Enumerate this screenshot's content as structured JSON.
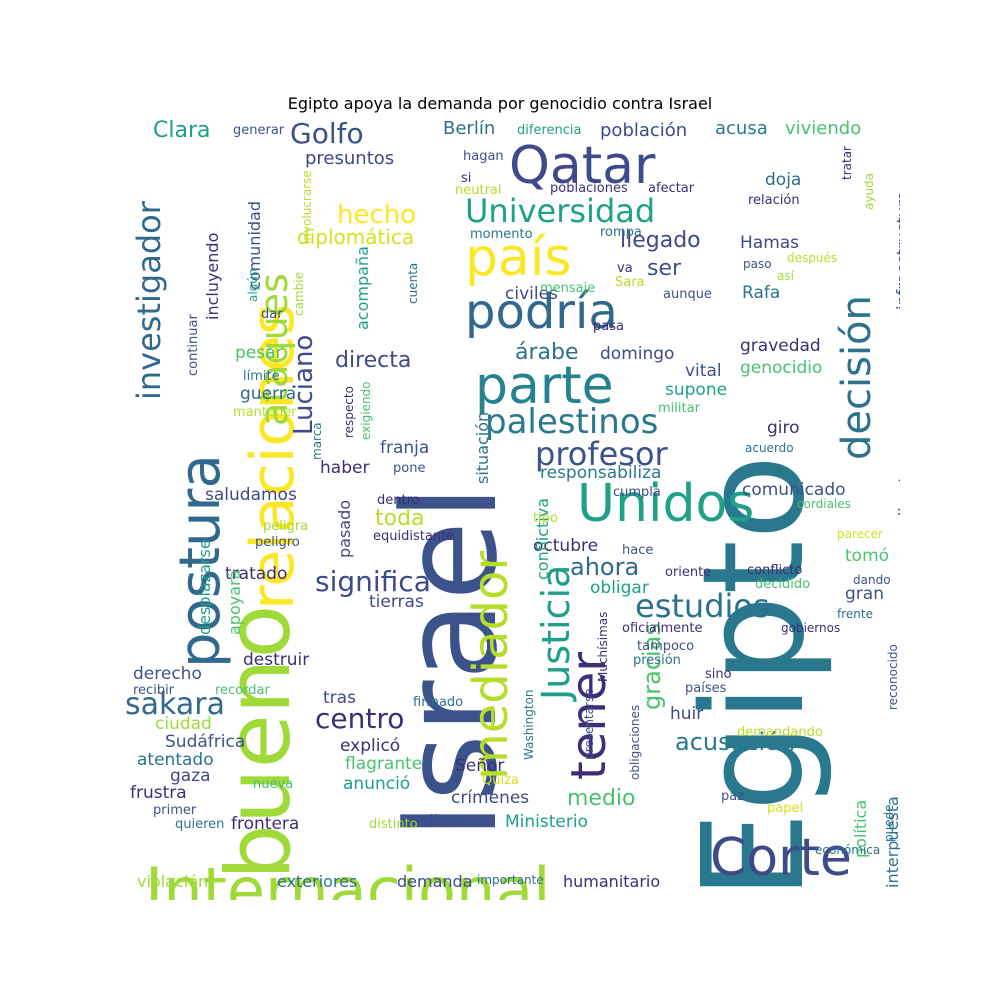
{
  "title": "Egipto apoya la demanda por genocidio contra Israel",
  "palette": {
    "dark_purple": "#3f2d77",
    "indigo": "#3e4a89",
    "blue": "#31678e",
    "teal": "#26828e",
    "green_teal": "#1fa187",
    "green": "#4ac16d",
    "lime": "#a0da39",
    "yellow": "#fde725"
  },
  "words": [
    {
      "text": "Egipto",
      "color": "#2a788e"
    },
    {
      "text": "Israel",
      "color": "#3b528b"
    },
    {
      "text": "bueno",
      "color": "#a0da39"
    },
    {
      "text": "Internacional",
      "color": "#a0da39"
    },
    {
      "text": "relaciones",
      "color": "#fde725"
    },
    {
      "text": "postura",
      "color": "#31688e"
    },
    {
      "text": "mediador",
      "color": "#b5de2b"
    },
    {
      "text": "Qatar",
      "color": "#3e4a89"
    },
    {
      "text": "podría",
      "color": "#31688e"
    },
    {
      "text": "parte",
      "color": "#26828e"
    },
    {
      "text": "país",
      "color": "#fde725"
    },
    {
      "text": "Unidos",
      "color": "#1fa187"
    },
    {
      "text": "tener",
      "color": "#3f2d77"
    },
    {
      "text": "Corte",
      "color": "#3e4a89"
    },
    {
      "text": "Justicia",
      "color": "#1f9e89"
    },
    {
      "text": "decisión",
      "color": "#2c728e"
    },
    {
      "text": "ataques",
      "color": "#a0da39"
    },
    {
      "text": "investigador",
      "color": "#31688e"
    },
    {
      "text": "Universidad",
      "color": "#1fa187"
    },
    {
      "text": "palestinos",
      "color": "#2a788e"
    },
    {
      "text": "profesor",
      "color": "#3b528b"
    },
    {
      "text": "estudios",
      "color": "#2c728e"
    },
    {
      "text": "Luciano",
      "color": "#3e4a89"
    },
    {
      "text": "sakara",
      "color": "#31688e"
    },
    {
      "text": "significa",
      "color": "#3e4a89"
    },
    {
      "text": "centro",
      "color": "#3f2d77"
    },
    {
      "text": "Golfo",
      "color": "#3b528b"
    },
    {
      "text": "hecho",
      "color": "#fde725"
    },
    {
      "text": "acusación",
      "color": "#2a788e"
    },
    {
      "text": "gracias",
      "color": "#4ac16d"
    },
    {
      "text": "ahora",
      "color": "#31688e"
    },
    {
      "text": "directa",
      "color": "#3e4a89"
    },
    {
      "text": "árabe",
      "color": "#2c728e"
    },
    {
      "text": "llegado",
      "color": "#3e4a89"
    },
    {
      "text": "ser",
      "color": "#3b528b"
    },
    {
      "text": "toda",
      "color": "#b5de2b"
    },
    {
      "text": "medio",
      "color": "#4ac16d"
    },
    {
      "text": "diplomática",
      "color": "#d2e21b"
    },
    {
      "text": "Clara",
      "color": "#1f9e89"
    },
    {
      "text": "Berlín",
      "color": "#2c728e"
    },
    {
      "text": "población",
      "color": "#3e4a89"
    },
    {
      "text": "acusa",
      "color": "#2a788e"
    },
    {
      "text": "viviendo",
      "color": "#4ac16d"
    },
    {
      "text": "presuntos",
      "color": "#3e4a89"
    },
    {
      "text": "Hamas",
      "color": "#3e4a89"
    },
    {
      "text": "doja",
      "color": "#31688e"
    },
    {
      "text": "Rafa",
      "color": "#2c728e"
    },
    {
      "text": "civiles",
      "color": "#3e4a89"
    },
    {
      "text": "domingo",
      "color": "#3e4a89"
    },
    {
      "text": "vital",
      "color": "#3b528b"
    },
    {
      "text": "gravedad",
      "color": "#3f2d77"
    },
    {
      "text": "genocidio",
      "color": "#4ac16d"
    },
    {
      "text": "supone",
      "color": "#1fa187"
    },
    {
      "text": "guerra",
      "color": "#31688e"
    },
    {
      "text": "pesar",
      "color": "#4ac16d"
    },
    {
      "text": "haber",
      "color": "#3f2d77"
    },
    {
      "text": "franja",
      "color": "#3b528b"
    },
    {
      "text": "saludamos",
      "color": "#3e4a89"
    },
    {
      "text": "responsabiliza",
      "color": "#2a788e"
    },
    {
      "text": "comunicado",
      "color": "#3b528b"
    },
    {
      "text": "giro",
      "color": "#3f2d77"
    },
    {
      "text": "tomó",
      "color": "#4ac16d"
    },
    {
      "text": "octubre",
      "color": "#3f2d77"
    },
    {
      "text": "tratado",
      "color": "#3f2d77"
    },
    {
      "text": "tierras",
      "color": "#3e4a89"
    },
    {
      "text": "obligar",
      "color": "#1fa187"
    },
    {
      "text": "gran",
      "color": "#3b528b"
    },
    {
      "text": "destruir",
      "color": "#3f2d77"
    },
    {
      "text": "derecho",
      "color": "#3b528b"
    },
    {
      "text": "ciudad",
      "color": "#a0da39"
    },
    {
      "text": "tras",
      "color": "#3e4a89"
    },
    {
      "text": "explicó",
      "color": "#3f2d77"
    },
    {
      "text": "huir",
      "color": "#3e4a89"
    },
    {
      "text": "Sudáfrica",
      "color": "#3b528b"
    },
    {
      "text": "atentado",
      "color": "#2c728e"
    },
    {
      "text": "gaza",
      "color": "#3e4a89"
    },
    {
      "text": "frustra",
      "color": "#3f2d77"
    },
    {
      "text": "flagrante",
      "color": "#4ac16d"
    },
    {
      "text": "anunció",
      "color": "#1fa187"
    },
    {
      "text": "crímenes",
      "color": "#3e4a89"
    },
    {
      "text": "Señor",
      "color": "#3f2d77"
    },
    {
      "text": "frontera",
      "color": "#3f2d77"
    },
    {
      "text": "dice",
      "color": "#3e4a89"
    },
    {
      "text": "Ministerio",
      "color": "#1f9e89"
    },
    {
      "text": "violación",
      "color": "#a0da39"
    },
    {
      "text": "exteriores",
      "color": "#2c728e"
    },
    {
      "text": "demanda",
      "color": "#3e4a89"
    },
    {
      "text": "humanitario",
      "color": "#3f2d77"
    },
    {
      "text": "importante",
      "color": "#2c728e"
    },
    {
      "text": "política",
      "color": "#4ac16d"
    },
    {
      "text": "interpuesta",
      "color": "#2c728e"
    },
    {
      "text": "directos",
      "color": "#3b528b"
    },
    {
      "text": "infraestructura",
      "color": "#3b528b"
    },
    {
      "text": "desaparezca",
      "color": "#3e4a89"
    },
    {
      "text": "pasado",
      "color": "#3e4a89"
    },
    {
      "text": "conflictiva",
      "color": "#1fa187"
    },
    {
      "text": "situación",
      "color": "#2c728e"
    },
    {
      "text": "desplazarse",
      "color": "#1fa187"
    },
    {
      "text": "apoyará",
      "color": "#4ac16d"
    },
    {
      "text": "comunidad",
      "color": "#3b528b"
    },
    {
      "text": "incluyendo",
      "color": "#3f2d77"
    },
    {
      "text": "acompaña",
      "color": "#1fa187"
    },
    {
      "text": "continuar",
      "color": "#3b528b"
    },
    {
      "text": "exigiendo",
      "color": "#4ac16d"
    },
    {
      "text": "Washington",
      "color": "#2a788e"
    },
    {
      "text": "presentarse",
      "color": "#3b528b"
    },
    {
      "text": "Muchísimas",
      "color": "#3f2d77"
    },
    {
      "text": "obligaciones",
      "color": "#3b528b"
    },
    {
      "text": "reconocido",
      "color": "#3b528b"
    },
    {
      "text": "segundo",
      "color": "#2c728e"
    },
    {
      "text": "involucrarse",
      "color": "#b5de2b"
    },
    {
      "text": "algún",
      "color": "#1fa187"
    },
    {
      "text": "cambie",
      "color": "#a0da39"
    },
    {
      "text": "cuenta",
      "color": "#2c728e"
    },
    {
      "text": "marca",
      "color": "#2c728e"
    },
    {
      "text": "generar",
      "color": "#3b528b"
    },
    {
      "text": "diferencia",
      "color": "#1fa187"
    },
    {
      "text": "hagan",
      "color": "#3b528b"
    },
    {
      "text": "si",
      "color": "#3f2d77"
    },
    {
      "text": "neutral",
      "color": "#b5de2b"
    },
    {
      "text": "poblaciones",
      "color": "#3f2d77"
    },
    {
      "text": "afectar",
      "color": "#3f2d77"
    },
    {
      "text": "momento",
      "color": "#2c728e"
    },
    {
      "text": "rompa",
      "color": "#2c728e"
    },
    {
      "text": "va",
      "color": "#3f2d77"
    },
    {
      "text": "Sara",
      "color": "#b5de2b"
    },
    {
      "text": "mensaje",
      "color": "#4ac16d"
    },
    {
      "text": "aunque",
      "color": "#3b528b"
    },
    {
      "text": "pasa",
      "color": "#3f2d77"
    },
    {
      "text": "militar",
      "color": "#4ac16d"
    },
    {
      "text": "pone",
      "color": "#3b528b"
    },
    {
      "text": "dentro",
      "color": "#3f2d77"
    },
    {
      "text": "cumpla",
      "color": "#3e4a89"
    },
    {
      "text": "tipo",
      "color": "#b5de2b"
    },
    {
      "text": "equidistante",
      "color": "#3f2d77"
    },
    {
      "text": "hace",
      "color": "#3b528b"
    },
    {
      "text": "oriente",
      "color": "#3f2d77"
    },
    {
      "text": "conflicto",
      "color": "#3f2d77"
    },
    {
      "text": "decidido",
      "color": "#4ac16d"
    },
    {
      "text": "oficialmente",
      "color": "#3f2d77"
    },
    {
      "text": "tampoco",
      "color": "#3b528b"
    },
    {
      "text": "presión",
      "color": "#2c728e"
    },
    {
      "text": "sino",
      "color": "#3f2d77"
    },
    {
      "text": "países",
      "color": "#3b528b"
    },
    {
      "text": "firmado",
      "color": "#2c728e"
    },
    {
      "text": "demandando",
      "color": "#b5de2b"
    },
    {
      "text": "paz",
      "color": "#3b528b"
    },
    {
      "text": "papel",
      "color": "#d2e21b"
    },
    {
      "text": "Quiza",
      "color": "#d2e21b"
    },
    {
      "text": "distinto",
      "color": "#a0da39"
    },
    {
      "text": "nueva",
      "color": "#4ac16d"
    },
    {
      "text": "primer",
      "color": "#3b528b"
    },
    {
      "text": "quieren",
      "color": "#2c728e"
    },
    {
      "text": "recibir",
      "color": "#3b528b"
    },
    {
      "text": "recordar",
      "color": "#4ac16d"
    },
    {
      "text": "peligra",
      "color": "#a0da39"
    },
    {
      "text": "peligro",
      "color": "#3b528b"
    },
    {
      "text": "límite",
      "color": "#2c728e"
    },
    {
      "text": "mantener",
      "color": "#b5de2b"
    },
    {
      "text": "dar",
      "color": "#3b528b"
    },
    {
      "text": "respecto",
      "color": "#3f2d77"
    },
    {
      "text": "relación",
      "color": "#3f2d77"
    },
    {
      "text": "ayuda",
      "color": "#a0da39"
    },
    {
      "text": "tratar",
      "color": "#3f2d77"
    },
    {
      "text": "paso",
      "color": "#3b528b"
    },
    {
      "text": "después",
      "color": "#b5de2b"
    },
    {
      "text": "así",
      "color": "#a0da39"
    },
    {
      "text": "acuerdo",
      "color": "#2c728e"
    },
    {
      "text": "cordiales",
      "color": "#4ac16d"
    },
    {
      "text": "parecer",
      "color": "#d2e21b"
    },
    {
      "text": "dando",
      "color": "#3b528b"
    },
    {
      "text": "frente",
      "color": "#2c728e"
    },
    {
      "text": "gobiernos",
      "color": "#3f2d77"
    },
    {
      "text": "económica",
      "color": "#2c728e"
    },
    {
      "text": "puede",
      "color": "#2c728e"
    }
  ]
}
